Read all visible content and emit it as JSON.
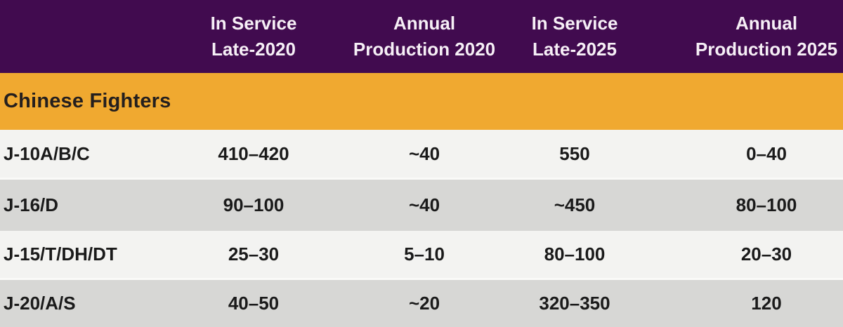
{
  "header": {
    "columns": [
      {
        "line1": "In Service",
        "line2": "Late-2020"
      },
      {
        "line1": "Annual",
        "line2": "Production 2020"
      },
      {
        "line1": "In Service",
        "line2": "Late-2025"
      },
      {
        "line1": "Annual",
        "line2": "Production 2025"
      }
    ]
  },
  "section": {
    "title": "Chinese Fighters"
  },
  "rows": [
    {
      "label": "J-10A/B/C",
      "values": [
        "410–420",
        "~40",
        "550",
        "0–40"
      ]
    },
    {
      "label": "J-16/D",
      "values": [
        "90–100",
        "~40",
        "~450",
        "80–100"
      ]
    },
    {
      "label": "J-15/T/DH/DT",
      "values": [
        "25–30",
        "5–10",
        "80–100",
        "20–30"
      ]
    },
    {
      "label": "J-20/A/S",
      "values": [
        "40–50",
        "~20",
        "320–350",
        "120"
      ]
    }
  ],
  "colors": {
    "header_bg": "#410b4f",
    "section_bg": "#f0a930",
    "row_light": "#f3f3f1",
    "row_dark": "#d7d7d5",
    "header_text": "#f6eff6",
    "body_text": "#1a1a1a"
  },
  "chart_data": {
    "type": "table",
    "columns": [
      "",
      "In Service Late-2020",
      "Annual Production 2020",
      "In Service Late-2025",
      "Annual Production 2025"
    ],
    "section": "Chinese Fighters",
    "rows": [
      [
        "J-10A/B/C",
        "410–420",
        "~40",
        "550",
        "0–40"
      ],
      [
        "J-16/D",
        "90–100",
        "~40",
        "~450",
        "80–100"
      ],
      [
        "J-15/T/DH/DT",
        "25–30",
        "5–10",
        "80–100",
        "20–30"
      ],
      [
        "J-20/A/S",
        "40–50",
        "~20",
        "320–350",
        "120"
      ]
    ]
  }
}
